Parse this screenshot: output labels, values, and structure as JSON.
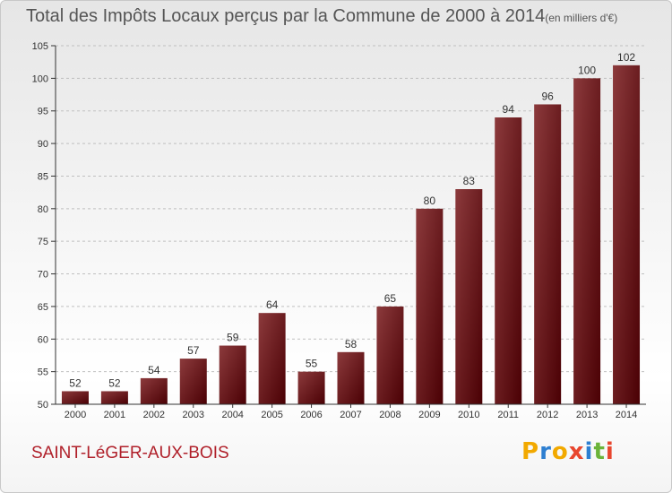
{
  "title": "Total des Impôts Locaux perçus par la Commune de 2000 à 2014",
  "title_unit": "(en milliers d'€)",
  "commune": "SAINT-LéGER-AUX-BOIS",
  "logo": {
    "letters": [
      "P",
      "r",
      "o",
      "x",
      "i",
      "t",
      "i"
    ],
    "colors": [
      "#f2a900",
      "#2e7fd1",
      "#f2a900",
      "#e8462e",
      "#2e7fd1",
      "#6bb33a",
      "#e8462e"
    ]
  },
  "colors": {
    "bar_light": "#8c3a3c",
    "bar_dark": "#4a0004",
    "grid": "#bfbfbf",
    "axis": "#333333"
  },
  "chart_data": {
    "type": "bar",
    "title": "Total des Impôts Locaux perçus par la Commune de 2000 à 2014",
    "xlabel": "",
    "ylabel": "",
    "categories": [
      "2000",
      "2001",
      "2002",
      "2003",
      "2004",
      "2005",
      "2006",
      "2007",
      "2008",
      "2009",
      "2010",
      "2011",
      "2012",
      "2013",
      "2014"
    ],
    "values": [
      52,
      52,
      54,
      57,
      59,
      64,
      55,
      58,
      65,
      80,
      83,
      94,
      96,
      100,
      102
    ],
    "ylim": [
      50,
      105
    ],
    "yticks": [
      50,
      55,
      60,
      65,
      70,
      75,
      80,
      85,
      90,
      95,
      100,
      105
    ],
    "grid": true
  }
}
